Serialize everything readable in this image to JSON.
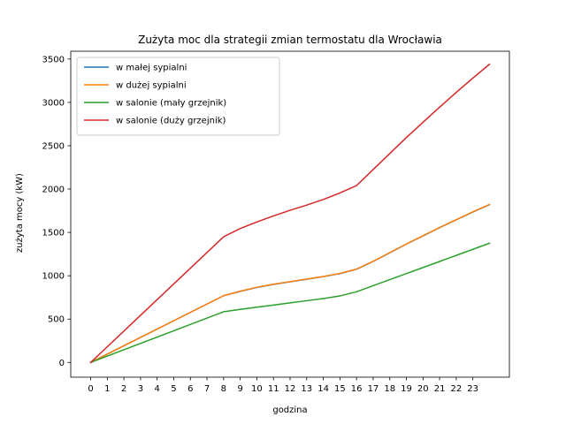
{
  "chart_data": {
    "type": "line",
    "title": "Zużyta moc dla strategii zmian termostatu dla Wrocławia",
    "xlabel": "godzina",
    "ylabel": "zużyta mocy (kW)",
    "x": [
      0,
      8,
      9,
      10,
      11,
      12,
      13,
      14,
      15,
      16,
      17,
      18,
      19,
      20,
      21,
      22,
      23,
      24
    ],
    "xticks": [
      0,
      1,
      2,
      3,
      4,
      5,
      6,
      7,
      8,
      9,
      10,
      11,
      12,
      13,
      14,
      15,
      16,
      17,
      18,
      19,
      20,
      21,
      22,
      23
    ],
    "yticks": [
      0,
      500,
      1000,
      1500,
      2000,
      2500,
      3000,
      3500
    ],
    "xlim": [
      -1.2,
      25.2
    ],
    "ylim": [
      -170,
      3590
    ],
    "legend_position": "upper-left",
    "series": [
      {
        "name": "w małej sypialni",
        "color": "#1f77b4",
        "values": [
          0,
          770,
          820,
          865,
          900,
          930,
          960,
          990,
          1025,
          1075,
          1165,
          1265,
          1365,
          1460,
          1555,
          1645,
          1735,
          1820
        ]
      },
      {
        "name": "w dużej sypialni",
        "color": "#ff7f0e",
        "values": [
          0,
          770,
          822,
          867,
          902,
          932,
          962,
          992,
          1027,
          1077,
          1167,
          1267,
          1367,
          1462,
          1557,
          1647,
          1737,
          1822
        ]
      },
      {
        "name": "w salonie (mały grzejnik)",
        "color": "#2ca02c",
        "values": [
          0,
          585,
          612,
          637,
          662,
          687,
          712,
          737,
          767,
          815,
          885,
          955,
          1025,
          1095,
          1165,
          1235,
          1305,
          1375
        ]
      },
      {
        "name": "w salonie (duży grzejnik)",
        "color": "#d62728",
        "values": [
          0,
          1450,
          1545,
          1620,
          1690,
          1755,
          1815,
          1880,
          1955,
          2040,
          2225,
          2410,
          2595,
          2770,
          2945,
          3115,
          3280,
          3440
        ]
      }
    ]
  }
}
